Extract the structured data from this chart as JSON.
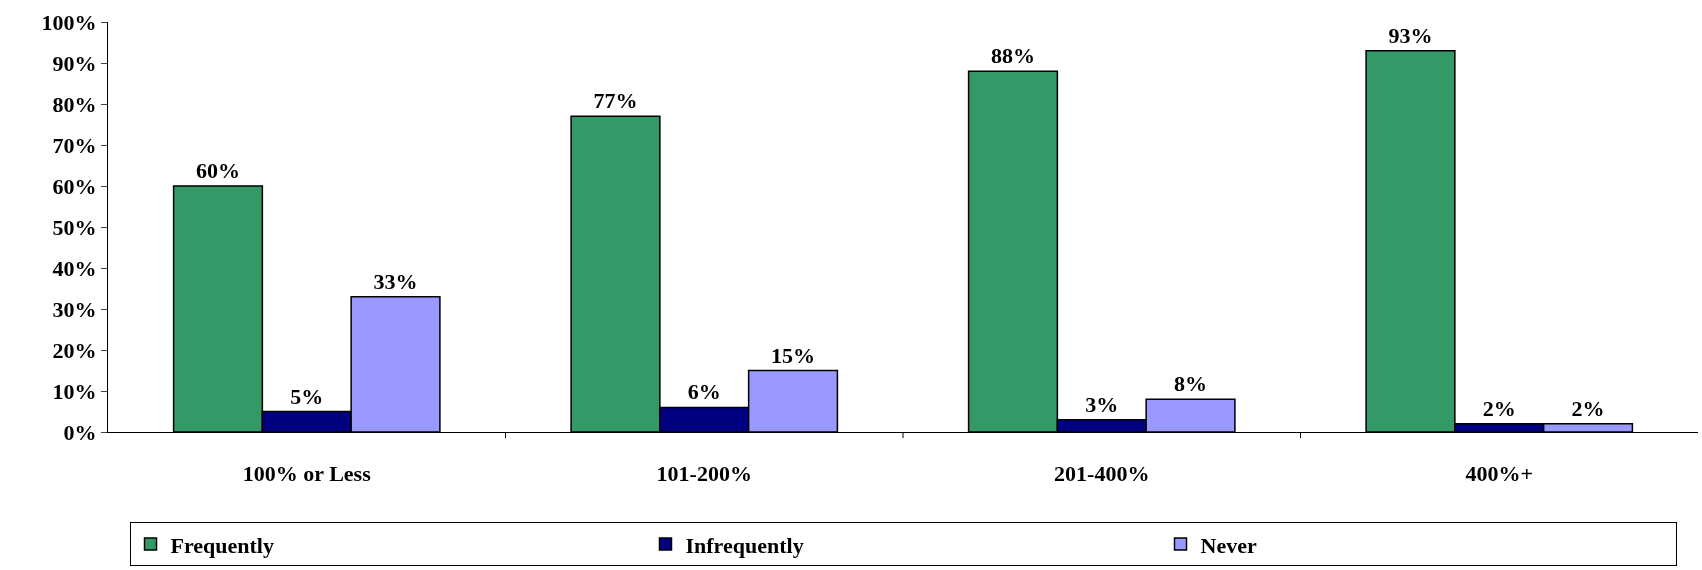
{
  "chart_data": {
    "type": "bar",
    "categories": [
      "100% or Less",
      "101-200%",
      "201-400%",
      "400%+"
    ],
    "series": [
      {
        "name": "Frequently",
        "color": "#339966",
        "values": [
          60,
          77,
          88,
          93
        ],
        "value_labels": [
          "60%",
          "77%",
          "88%",
          "93%"
        ]
      },
      {
        "name": "Infrequently",
        "color": "#000080",
        "values": [
          5,
          6,
          3,
          2
        ],
        "value_labels": [
          "5%",
          "6%",
          "3%",
          "2%"
        ]
      },
      {
        "name": "Never",
        "color": "#9999ff",
        "values": [
          33,
          15,
          8,
          2
        ],
        "value_labels": [
          "33%",
          "15%",
          "8%",
          "2%"
        ]
      }
    ],
    "ylim": [
      0,
      100
    ],
    "yticks": [
      {
        "value": 0,
        "label": "0%"
      },
      {
        "value": 10,
        "label": "10%"
      },
      {
        "value": 20,
        "label": "20%"
      },
      {
        "value": 30,
        "label": "30%"
      },
      {
        "value": 40,
        "label": "40%"
      },
      {
        "value": 50,
        "label": "50%"
      },
      {
        "value": 60,
        "label": "60%"
      },
      {
        "value": 70,
        "label": "70%"
      },
      {
        "value": 80,
        "label": "80%"
      },
      {
        "value": 90,
        "label": "90%"
      },
      {
        "value": 100,
        "label": "100%"
      }
    ],
    "legend": "bottom"
  }
}
